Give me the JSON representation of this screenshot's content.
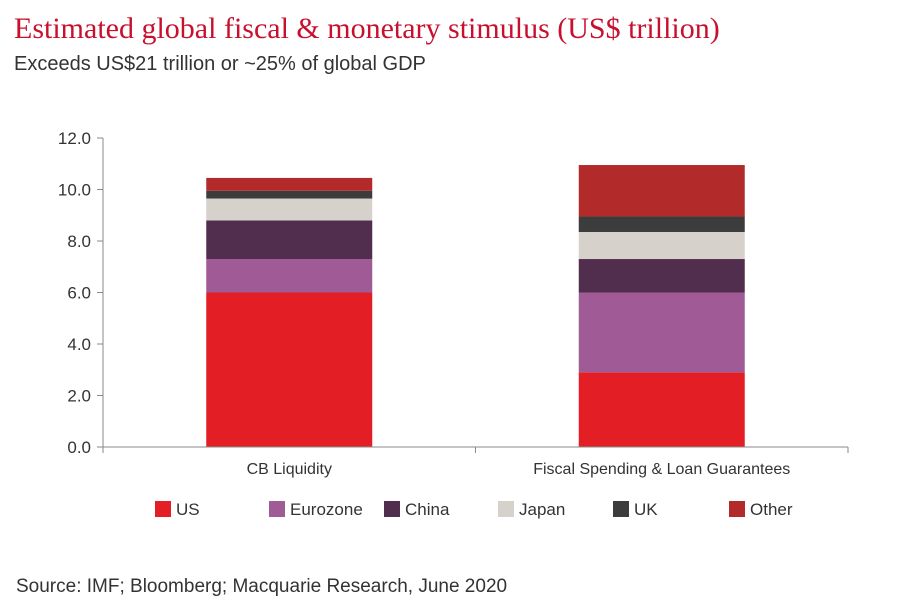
{
  "header": {
    "title": "Estimated global fiscal & monetary stimulus (US$ trillion)",
    "subtitle": "Exceeds US$21 trillion or ~25% of global GDP"
  },
  "footer": {
    "source": "Source: IMF; Bloomberg; Macquarie Research, June 2020"
  },
  "chart_data": {
    "type": "bar",
    "stacked": true,
    "categories": [
      "CB Liquidity",
      "Fiscal Spending & Loan Guarantees"
    ],
    "series": [
      {
        "name": "US",
        "values": [
          6.0,
          2.9
        ],
        "color": "#e31e24"
      },
      {
        "name": "Eurozone",
        "values": [
          1.3,
          3.1
        ],
        "color": "#a05a96"
      },
      {
        "name": "China",
        "values": [
          1.5,
          1.3
        ],
        "color": "#522e4e"
      },
      {
        "name": "Japan",
        "values": [
          0.85,
          1.05
        ],
        "color": "#d6d2cb"
      },
      {
        "name": "UK",
        "values": [
          0.3,
          0.6
        ],
        "color": "#3c3c3c"
      },
      {
        "name": "Other",
        "values": [
          0.5,
          2.0
        ],
        "color": "#b22a2a"
      }
    ],
    "ylim": [
      0,
      12
    ],
    "yticks": [
      "0.0",
      "2.0",
      "4.0",
      "6.0",
      "8.0",
      "10.0",
      "12.0"
    ],
    "legend": "bottom",
    "grid": false
  }
}
